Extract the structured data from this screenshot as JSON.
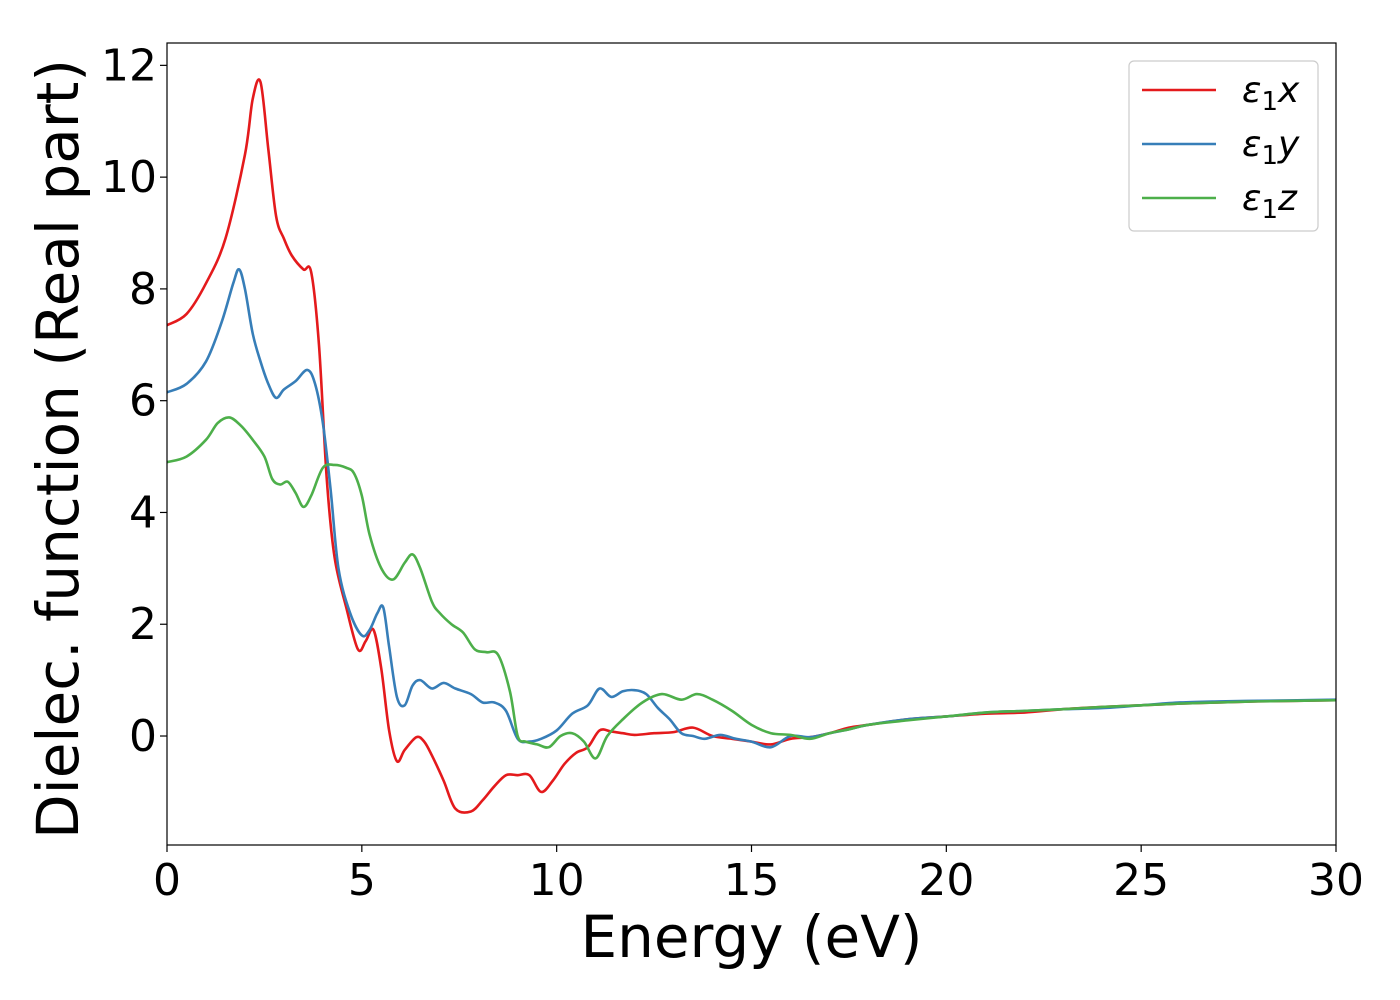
{
  "chart_data": {
    "type": "line",
    "title": "",
    "xlabel": "Energy (eV)",
    "ylabel": "Dielec. function (Real part)",
    "xlim": [
      0,
      30
    ],
    "ylim": [
      -1.95,
      12.4
    ],
    "xticks": [
      0,
      5,
      10,
      15,
      20,
      25,
      30
    ],
    "yticks": [
      0,
      2,
      4,
      6,
      8,
      10,
      12
    ],
    "legend_position": "top-right",
    "grid": false,
    "series": [
      {
        "name": "ε1x",
        "legend_main": "ε",
        "legend_sub": "1",
        "legend_suffix": "x",
        "color": "#e41a1c",
        "x": [
          0,
          0.5,
          1.0,
          1.5,
          2.0,
          2.2,
          2.4,
          2.6,
          2.8,
          3.0,
          3.2,
          3.5,
          3.7,
          3.9,
          4.1,
          4.3,
          4.6,
          4.9,
          5.1,
          5.3,
          5.5,
          5.7,
          5.9,
          6.1,
          6.4,
          6.6,
          6.8,
          7.1,
          7.4,
          7.8,
          8.1,
          8.4,
          8.7,
          9.0,
          9.3,
          9.6,
          9.9,
          10.2,
          10.5,
          10.8,
          11.1,
          11.4,
          11.7,
          12.0,
          12.5,
          13.0,
          13.5,
          14.0,
          14.5,
          15.0,
          15.5,
          16.0,
          16.5,
          17.0,
          17.5,
          18.0,
          19.0,
          20.0,
          21.0,
          22.0,
          23.0,
          24.0,
          25.0,
          26.0,
          27.0,
          28.0,
          29.0,
          30.0
        ],
        "values": [
          7.35,
          7.55,
          8.1,
          8.9,
          10.4,
          11.4,
          11.7,
          10.5,
          9.3,
          8.9,
          8.6,
          8.35,
          8.3,
          7.0,
          4.6,
          3.2,
          2.3,
          1.55,
          1.7,
          1.9,
          1.2,
          0.1,
          -0.45,
          -0.25,
          -0.02,
          -0.1,
          -0.35,
          -0.8,
          -1.3,
          -1.35,
          -1.15,
          -0.9,
          -0.7,
          -0.7,
          -0.7,
          -1.0,
          -0.8,
          -0.5,
          -0.3,
          -0.2,
          0.1,
          0.08,
          0.05,
          0.02,
          0.05,
          0.07,
          0.15,
          0.0,
          -0.05,
          -0.1,
          -0.15,
          -0.05,
          -0.02,
          0.05,
          0.15,
          0.2,
          0.3,
          0.35,
          0.4,
          0.42,
          0.48,
          0.52,
          0.55,
          0.58,
          0.6,
          0.62,
          0.63,
          0.64
        ]
      },
      {
        "name": "ε1y",
        "legend_main": "ε",
        "legend_sub": "1",
        "legend_suffix": "y",
        "color": "#377eb8",
        "x": [
          0,
          0.5,
          1.0,
          1.4,
          1.7,
          1.85,
          2.0,
          2.2,
          2.4,
          2.6,
          2.8,
          3.0,
          3.3,
          3.6,
          3.8,
          4.0,
          4.2,
          4.4,
          4.7,
          5.0,
          5.2,
          5.4,
          5.55,
          5.7,
          5.9,
          6.1,
          6.3,
          6.5,
          6.8,
          7.1,
          7.4,
          7.8,
          8.1,
          8.4,
          8.7,
          9.0,
          9.3,
          9.6,
          10.0,
          10.4,
          10.8,
          11.1,
          11.4,
          11.7,
          12.0,
          12.3,
          12.6,
          12.9,
          13.2,
          13.5,
          13.8,
          14.2,
          14.6,
          15.0,
          15.5,
          16.0,
          16.5,
          17.0,
          17.5,
          18.0,
          19.0,
          20.0,
          21.0,
          22.0,
          23.0,
          24.0,
          25.0,
          26.0,
          27.0,
          28.0,
          29.0,
          30.0
        ],
        "values": [
          6.15,
          6.3,
          6.7,
          7.4,
          8.1,
          8.35,
          8.0,
          7.2,
          6.7,
          6.3,
          6.05,
          6.2,
          6.35,
          6.55,
          6.3,
          5.6,
          4.4,
          3.0,
          2.2,
          1.8,
          1.9,
          2.2,
          2.3,
          1.6,
          0.7,
          0.55,
          0.9,
          1.0,
          0.85,
          0.95,
          0.85,
          0.75,
          0.6,
          0.6,
          0.45,
          -0.05,
          -0.1,
          -0.05,
          0.1,
          0.4,
          0.55,
          0.85,
          0.7,
          0.8,
          0.82,
          0.75,
          0.5,
          0.3,
          0.05,
          0.0,
          -0.05,
          0.02,
          -0.05,
          -0.1,
          -0.2,
          0.0,
          -0.02,
          0.05,
          0.12,
          0.2,
          0.3,
          0.35,
          0.42,
          0.45,
          0.48,
          0.5,
          0.55,
          0.6,
          0.62,
          0.63,
          0.64,
          0.65
        ]
      },
      {
        "name": "ε1z",
        "legend_main": "ε",
        "legend_sub": "1",
        "legend_suffix": "z",
        "color": "#4daf4a",
        "x": [
          0,
          0.5,
          1.0,
          1.3,
          1.6,
          1.9,
          2.2,
          2.5,
          2.7,
          2.9,
          3.1,
          3.3,
          3.5,
          3.7,
          4.0,
          4.3,
          4.6,
          4.8,
          5.0,
          5.2,
          5.5,
          5.8,
          6.1,
          6.3,
          6.5,
          6.8,
          7.0,
          7.3,
          7.6,
          7.9,
          8.2,
          8.5,
          8.8,
          9.0,
          9.2,
          9.5,
          9.8,
          10.1,
          10.4,
          10.7,
          11.0,
          11.3,
          11.7,
          12.2,
          12.7,
          13.2,
          13.6,
          14.0,
          14.5,
          15.0,
          15.5,
          16.0,
          16.5,
          17.0,
          17.5,
          18.0,
          19.0,
          20.0,
          21.0,
          22.0,
          23.0,
          24.0,
          25.0,
          26.0,
          27.0,
          28.0,
          29.0,
          30.0
        ],
        "values": [
          4.9,
          5.0,
          5.3,
          5.6,
          5.7,
          5.55,
          5.3,
          5.0,
          4.6,
          4.5,
          4.55,
          4.35,
          4.1,
          4.3,
          4.8,
          4.85,
          4.8,
          4.7,
          4.3,
          3.6,
          3.0,
          2.8,
          3.1,
          3.25,
          3.0,
          2.4,
          2.2,
          2.0,
          1.85,
          1.55,
          1.5,
          1.45,
          0.8,
          0.0,
          -0.1,
          -0.15,
          -0.2,
          0.0,
          0.05,
          -0.1,
          -0.4,
          0.0,
          0.3,
          0.6,
          0.75,
          0.65,
          0.75,
          0.65,
          0.45,
          0.2,
          0.05,
          0.02,
          -0.05,
          0.05,
          0.12,
          0.2,
          0.28,
          0.35,
          0.42,
          0.45,
          0.48,
          0.52,
          0.55,
          0.58,
          0.6,
          0.62,
          0.63,
          0.64
        ]
      }
    ]
  }
}
